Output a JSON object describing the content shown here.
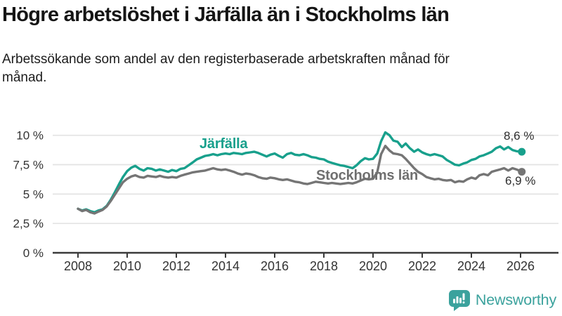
{
  "header": {
    "title": "Högre arbetslöshet i Järfälla än i Stockholms län",
    "subtitle": "Arbetssökande som andel av den registerbaserade arbetskraften månad för månad."
  },
  "chart_data": {
    "type": "line",
    "title": "Högre arbetslöshet i Järfälla än i Stockholms län",
    "unit": "percent of registered labour force",
    "grid": true,
    "legend_position": "inline-labels",
    "x_axis": {
      "min": 2007.8,
      "max": 2026.6,
      "ticks": [
        {
          "value": 2008,
          "label": "2008"
        },
        {
          "value": 2010,
          "label": "2010"
        },
        {
          "value": 2012,
          "label": "2012"
        },
        {
          "value": 2014,
          "label": "2014"
        },
        {
          "value": 2016,
          "label": "2016"
        },
        {
          "value": 2018,
          "label": "2018"
        },
        {
          "value": 2020,
          "label": "2020"
        },
        {
          "value": 2022,
          "label": "2022"
        },
        {
          "value": 2024,
          "label": "2024"
        },
        {
          "value": 2026,
          "label": "2026"
        }
      ]
    },
    "y_axis": {
      "min": 0,
      "max": 10.5,
      "ticks": [
        {
          "value": 0,
          "label": "0 %"
        },
        {
          "value": 2.5,
          "label": "2,5 %"
        },
        {
          "value": 5,
          "label": "5 %"
        },
        {
          "value": 7.5,
          "label": "7,5 %"
        },
        {
          "value": 10,
          "label": "10 %"
        }
      ]
    },
    "series": [
      {
        "name": "Järfälla",
        "color": "#18A08C",
        "end_label": "8,6 %",
        "end_value": 8.6,
        "points": [
          [
            2008.0,
            3.75
          ],
          [
            2008.17,
            3.6
          ],
          [
            2008.33,
            3.7
          ],
          [
            2008.5,
            3.55
          ],
          [
            2008.67,
            3.45
          ],
          [
            2008.83,
            3.6
          ],
          [
            2009.0,
            3.7
          ],
          [
            2009.17,
            4.0
          ],
          [
            2009.33,
            4.5
          ],
          [
            2009.5,
            5.15
          ],
          [
            2009.67,
            5.85
          ],
          [
            2009.83,
            6.45
          ],
          [
            2010.0,
            6.95
          ],
          [
            2010.17,
            7.25
          ],
          [
            2010.33,
            7.4
          ],
          [
            2010.5,
            7.15
          ],
          [
            2010.67,
            7.0
          ],
          [
            2010.83,
            7.2
          ],
          [
            2011.0,
            7.15
          ],
          [
            2011.17,
            7.0
          ],
          [
            2011.33,
            7.1
          ],
          [
            2011.5,
            7.0
          ],
          [
            2011.67,
            6.9
          ],
          [
            2011.83,
            7.05
          ],
          [
            2012.0,
            6.95
          ],
          [
            2012.17,
            7.15
          ],
          [
            2012.33,
            7.2
          ],
          [
            2012.5,
            7.45
          ],
          [
            2012.67,
            7.7
          ],
          [
            2012.83,
            7.95
          ],
          [
            2013.0,
            8.1
          ],
          [
            2013.17,
            8.25
          ],
          [
            2013.33,
            8.3
          ],
          [
            2013.5,
            8.4
          ],
          [
            2013.67,
            8.3
          ],
          [
            2013.83,
            8.4
          ],
          [
            2014.0,
            8.45
          ],
          [
            2014.17,
            8.4
          ],
          [
            2014.33,
            8.5
          ],
          [
            2014.5,
            8.45
          ],
          [
            2014.67,
            8.4
          ],
          [
            2014.83,
            8.5
          ],
          [
            2015.0,
            8.55
          ],
          [
            2015.17,
            8.6
          ],
          [
            2015.33,
            8.5
          ],
          [
            2015.5,
            8.35
          ],
          [
            2015.67,
            8.2
          ],
          [
            2015.83,
            8.35
          ],
          [
            2016.0,
            8.45
          ],
          [
            2016.17,
            8.25
          ],
          [
            2016.33,
            8.1
          ],
          [
            2016.5,
            8.4
          ],
          [
            2016.67,
            8.5
          ],
          [
            2016.83,
            8.35
          ],
          [
            2017.0,
            8.3
          ],
          [
            2017.17,
            8.4
          ],
          [
            2017.33,
            8.3
          ],
          [
            2017.5,
            8.15
          ],
          [
            2017.67,
            8.1
          ],
          [
            2017.83,
            8.0
          ],
          [
            2018.0,
            7.95
          ],
          [
            2018.17,
            7.75
          ],
          [
            2018.33,
            7.65
          ],
          [
            2018.5,
            7.55
          ],
          [
            2018.67,
            7.45
          ],
          [
            2018.83,
            7.4
          ],
          [
            2019.0,
            7.3
          ],
          [
            2019.17,
            7.2
          ],
          [
            2019.33,
            7.45
          ],
          [
            2019.5,
            7.8
          ],
          [
            2019.67,
            8.05
          ],
          [
            2019.83,
            7.95
          ],
          [
            2020.0,
            8.0
          ],
          [
            2020.17,
            8.45
          ],
          [
            2020.33,
            9.5
          ],
          [
            2020.5,
            10.25
          ],
          [
            2020.67,
            10.0
          ],
          [
            2020.83,
            9.55
          ],
          [
            2021.0,
            9.45
          ],
          [
            2021.17,
            9.0
          ],
          [
            2021.33,
            9.3
          ],
          [
            2021.5,
            8.9
          ],
          [
            2021.67,
            8.6
          ],
          [
            2021.83,
            8.8
          ],
          [
            2022.0,
            8.55
          ],
          [
            2022.17,
            8.4
          ],
          [
            2022.33,
            8.3
          ],
          [
            2022.5,
            8.4
          ],
          [
            2022.67,
            8.3
          ],
          [
            2022.83,
            8.2
          ],
          [
            2023.0,
            7.9
          ],
          [
            2023.17,
            7.7
          ],
          [
            2023.33,
            7.5
          ],
          [
            2023.5,
            7.45
          ],
          [
            2023.67,
            7.6
          ],
          [
            2023.83,
            7.7
          ],
          [
            2024.0,
            7.9
          ],
          [
            2024.17,
            8.0
          ],
          [
            2024.33,
            8.2
          ],
          [
            2024.5,
            8.3
          ],
          [
            2024.67,
            8.45
          ],
          [
            2024.83,
            8.6
          ],
          [
            2025.0,
            8.9
          ],
          [
            2025.17,
            9.05
          ],
          [
            2025.33,
            8.8
          ],
          [
            2025.5,
            9.0
          ],
          [
            2025.67,
            8.75
          ],
          [
            2025.83,
            8.65
          ],
          [
            2026.05,
            8.6
          ]
        ]
      },
      {
        "name": "Stockholms län",
        "color": "#757575",
        "end_label": "6,9 %",
        "end_value": 6.9,
        "points": [
          [
            2008.0,
            3.75
          ],
          [
            2008.17,
            3.55
          ],
          [
            2008.33,
            3.65
          ],
          [
            2008.5,
            3.45
          ],
          [
            2008.67,
            3.35
          ],
          [
            2008.83,
            3.5
          ],
          [
            2009.0,
            3.65
          ],
          [
            2009.17,
            3.95
          ],
          [
            2009.33,
            4.4
          ],
          [
            2009.5,
            4.95
          ],
          [
            2009.67,
            5.5
          ],
          [
            2009.83,
            6.0
          ],
          [
            2010.0,
            6.3
          ],
          [
            2010.17,
            6.5
          ],
          [
            2010.33,
            6.6
          ],
          [
            2010.5,
            6.45
          ],
          [
            2010.67,
            6.4
          ],
          [
            2010.83,
            6.55
          ],
          [
            2011.0,
            6.5
          ],
          [
            2011.17,
            6.45
          ],
          [
            2011.33,
            6.55
          ],
          [
            2011.5,
            6.45
          ],
          [
            2011.67,
            6.4
          ],
          [
            2011.83,
            6.45
          ],
          [
            2012.0,
            6.4
          ],
          [
            2012.17,
            6.55
          ],
          [
            2012.33,
            6.65
          ],
          [
            2012.5,
            6.75
          ],
          [
            2012.67,
            6.85
          ],
          [
            2012.83,
            6.9
          ],
          [
            2013.0,
            6.95
          ],
          [
            2013.17,
            7.0
          ],
          [
            2013.33,
            7.1
          ],
          [
            2013.5,
            7.2
          ],
          [
            2013.67,
            7.1
          ],
          [
            2013.83,
            7.05
          ],
          [
            2014.0,
            7.1
          ],
          [
            2014.17,
            7.0
          ],
          [
            2014.33,
            6.9
          ],
          [
            2014.5,
            6.75
          ],
          [
            2014.67,
            6.65
          ],
          [
            2014.83,
            6.75
          ],
          [
            2015.0,
            6.7
          ],
          [
            2015.17,
            6.6
          ],
          [
            2015.33,
            6.45
          ],
          [
            2015.5,
            6.35
          ],
          [
            2015.67,
            6.3
          ],
          [
            2015.83,
            6.4
          ],
          [
            2016.0,
            6.35
          ],
          [
            2016.17,
            6.25
          ],
          [
            2016.33,
            6.2
          ],
          [
            2016.5,
            6.25
          ],
          [
            2016.67,
            6.15
          ],
          [
            2016.83,
            6.05
          ],
          [
            2017.0,
            6.0
          ],
          [
            2017.17,
            5.9
          ],
          [
            2017.33,
            5.85
          ],
          [
            2017.5,
            5.95
          ],
          [
            2017.67,
            6.05
          ],
          [
            2017.83,
            6.0
          ],
          [
            2018.0,
            5.95
          ],
          [
            2018.17,
            5.9
          ],
          [
            2018.33,
            5.95
          ],
          [
            2018.5,
            5.9
          ],
          [
            2018.67,
            5.85
          ],
          [
            2018.83,
            5.9
          ],
          [
            2019.0,
            5.95
          ],
          [
            2019.17,
            5.9
          ],
          [
            2019.33,
            6.0
          ],
          [
            2019.5,
            6.15
          ],
          [
            2019.67,
            6.3
          ],
          [
            2019.83,
            6.25
          ],
          [
            2020.0,
            6.3
          ],
          [
            2020.17,
            6.85
          ],
          [
            2020.33,
            8.4
          ],
          [
            2020.5,
            9.1
          ],
          [
            2020.67,
            8.7
          ],
          [
            2020.83,
            8.45
          ],
          [
            2021.0,
            8.4
          ],
          [
            2021.17,
            8.3
          ],
          [
            2021.33,
            8.0
          ],
          [
            2021.5,
            7.6
          ],
          [
            2021.67,
            7.2
          ],
          [
            2021.83,
            6.9
          ],
          [
            2022.0,
            6.7
          ],
          [
            2022.17,
            6.45
          ],
          [
            2022.33,
            6.35
          ],
          [
            2022.5,
            6.25
          ],
          [
            2022.67,
            6.3
          ],
          [
            2022.83,
            6.2
          ],
          [
            2023.0,
            6.15
          ],
          [
            2023.17,
            6.2
          ],
          [
            2023.33,
            6.0
          ],
          [
            2023.5,
            6.1
          ],
          [
            2023.67,
            6.05
          ],
          [
            2023.83,
            6.25
          ],
          [
            2024.0,
            6.4
          ],
          [
            2024.17,
            6.3
          ],
          [
            2024.33,
            6.6
          ],
          [
            2024.5,
            6.7
          ],
          [
            2024.67,
            6.6
          ],
          [
            2024.83,
            6.9
          ],
          [
            2025.0,
            7.0
          ],
          [
            2025.17,
            7.1
          ],
          [
            2025.33,
            7.2
          ],
          [
            2025.5,
            7.0
          ],
          [
            2025.67,
            7.2
          ],
          [
            2025.83,
            7.1
          ],
          [
            2026.05,
            6.9
          ]
        ]
      }
    ]
  },
  "branding": {
    "logo_text": "Newsworthy",
    "logo_icon": "bar-chart-speech-bubble-icon",
    "logo_color": "#3BA29D"
  },
  "colors": {
    "accent_teal": "#18A08C",
    "series_gray": "#757575",
    "axis": "#3a3a3a",
    "grid": "#E3E3E3",
    "title_text": "#151515"
  }
}
